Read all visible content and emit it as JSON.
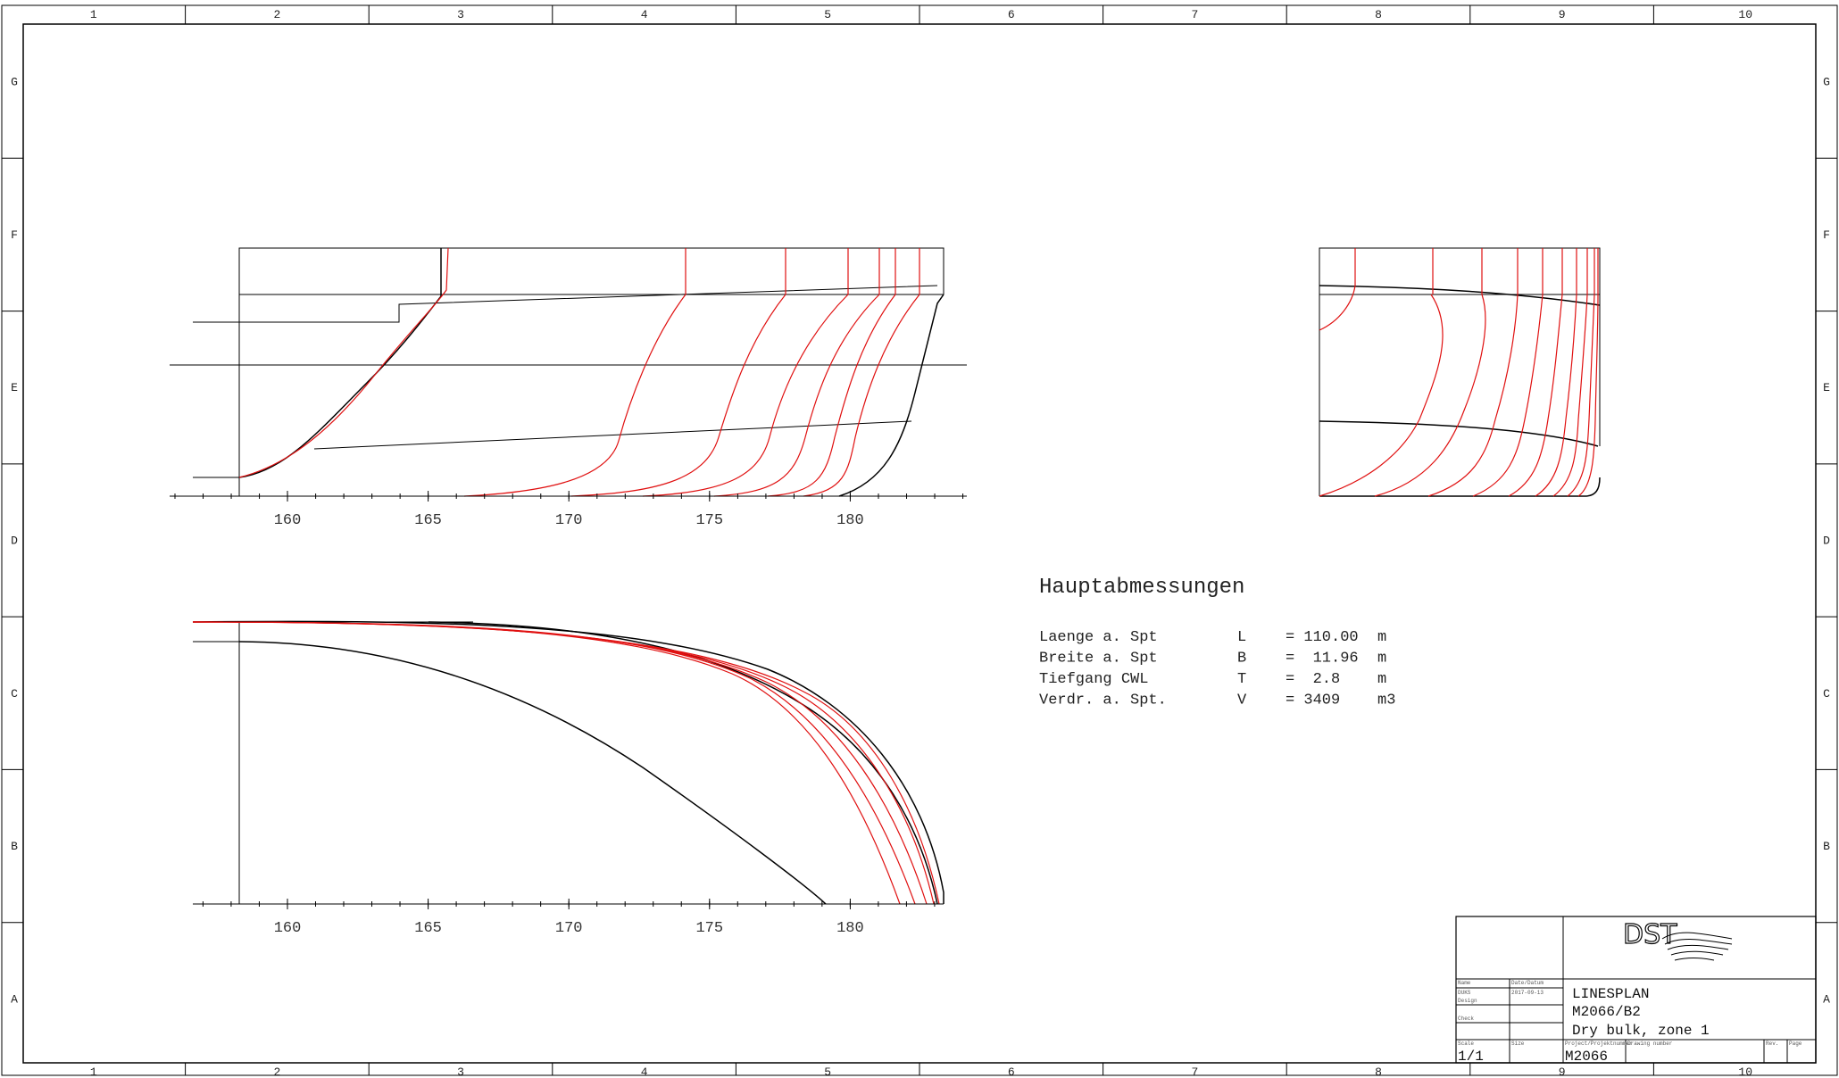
{
  "frame": {
    "columns": [
      "1",
      "2",
      "3",
      "4",
      "5",
      "6",
      "7",
      "8",
      "9",
      "10"
    ],
    "rows": [
      "G",
      "F",
      "E",
      "D",
      "C",
      "B",
      "A"
    ]
  },
  "profile_view": {
    "x_ticks": [
      "160",
      "165",
      "170",
      "175",
      "180"
    ]
  },
  "waterline_view": {
    "x_ticks": [
      "160",
      "165",
      "170",
      "175",
      "180"
    ]
  },
  "dimensions": {
    "title": "Hauptabmessungen",
    "rows": [
      {
        "label": "Laenge a. Spt",
        "symbol": "L",
        "value": "= 110.00",
        "unit": "m"
      },
      {
        "label": "Breite a. Spt",
        "symbol": "B",
        "value": "=  11.96",
        "unit": "m"
      },
      {
        "label": "Tiefgang CWL",
        "symbol": "T",
        "value": "=  2.8",
        "unit": "m"
      },
      {
        "label": "Verdr. a. Spt.",
        "symbol": "V",
        "value": "= 3409",
        "unit": "m3"
      }
    ]
  },
  "title_block": {
    "logo": "DST",
    "drawing_title": "LINESPLAN",
    "drawing_number": "M2066/B2",
    "description": "Dry bulk, zone 1",
    "name_value": "DUKS",
    "date_value": "2017-09-13",
    "scale_value": "1/1",
    "project_value": "M2066",
    "small_labels": {
      "name": "Name",
      "date": "Date/Datum",
      "design": "Design",
      "check": "Check",
      "scale": "Scale",
      "size": "Size",
      "project": "Project/Projektnummer",
      "drawing": "Drawing number",
      "rev": "Rev.",
      "page": "Page"
    }
  }
}
